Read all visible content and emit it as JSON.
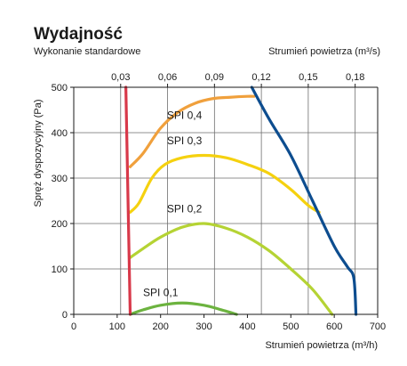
{
  "header": {
    "title": "Wydajność",
    "subtitle": "Wykonanie standardowe",
    "top_axis_label": "Strumień powietrza (m³/s)"
  },
  "chart_data": {
    "type": "line",
    "title": "Wydajność",
    "xlabel": "Strumień powietrza (m³/h)",
    "ylabel": "Spręż dyspozycyjny (Pa)",
    "x2label": "Strumień powietrza (m³/s)",
    "xlim": [
      0,
      700
    ],
    "ylim": [
      0,
      500
    ],
    "x2lim": [
      0,
      0.1944
    ],
    "x_ticks": [
      0,
      100,
      200,
      300,
      400,
      500,
      600,
      700
    ],
    "y_ticks": [
      0,
      100,
      200,
      300,
      400,
      500
    ],
    "x2_ticks": [
      {
        "value": 0.03,
        "label": "0,03"
      },
      {
        "value": 0.06,
        "label": "0,06"
      },
      {
        "value": 0.09,
        "label": "0,09"
      },
      {
        "value": 0.12,
        "label": "0,12"
      },
      {
        "value": 0.15,
        "label": "0,15"
      },
      {
        "value": 0.18,
        "label": "0,18"
      }
    ],
    "grid": true,
    "series": [
      {
        "name": "SPI 0,1",
        "color": "#6cb33f",
        "points": [
          [
            130,
            0
          ],
          [
            160,
            10
          ],
          [
            200,
            20
          ],
          [
            250,
            25
          ],
          [
            300,
            20
          ],
          [
            340,
            10
          ],
          [
            375,
            0
          ]
        ]
      },
      {
        "name": "SPI 0,2",
        "color": "#b5d334",
        "points": [
          [
            130,
            125
          ],
          [
            160,
            145
          ],
          [
            200,
            170
          ],
          [
            250,
            192
          ],
          [
            300,
            200
          ],
          [
            350,
            190
          ],
          [
            400,
            170
          ],
          [
            450,
            140
          ],
          [
            500,
            100
          ],
          [
            550,
            55
          ],
          [
            595,
            0
          ]
        ]
      },
      {
        "name": "SPI 0,3",
        "color": "#f5d10f",
        "points": [
          [
            130,
            225
          ],
          [
            150,
            245
          ],
          [
            180,
            300
          ],
          [
            210,
            330
          ],
          [
            250,
            345
          ],
          [
            300,
            350
          ],
          [
            350,
            345
          ],
          [
            400,
            330
          ],
          [
            450,
            310
          ],
          [
            500,
            275
          ],
          [
            540,
            240
          ],
          [
            565,
            225
          ]
        ]
      },
      {
        "name": "SPI 0,4",
        "color": "#f0a03c",
        "points": [
          [
            130,
            325
          ],
          [
            160,
            355
          ],
          [
            200,
            410
          ],
          [
            240,
            445
          ],
          [
            280,
            465
          ],
          [
            320,
            475
          ],
          [
            360,
            478
          ],
          [
            400,
            480
          ],
          [
            415,
            480
          ]
        ]
      },
      {
        "name": "",
        "color": "#d8394a",
        "points": [
          [
            120,
            500
          ],
          [
            130,
            0
          ]
        ]
      },
      {
        "name": "",
        "color": "#0d4d8f",
        "points": [
          [
            410,
            500
          ],
          [
            450,
            430
          ],
          [
            500,
            350
          ],
          [
            550,
            250
          ],
          [
            600,
            150
          ],
          [
            630,
            105
          ],
          [
            645,
            80
          ],
          [
            650,
            0
          ]
        ]
      }
    ],
    "annotations": [
      {
        "text": "SPI 0,1",
        "x": 200,
        "y": 40
      },
      {
        "text": "SPI 0,2",
        "x": 255,
        "y": 225
      },
      {
        "text": "SPI 0,3",
        "x": 255,
        "y": 375
      },
      {
        "text": "SPI 0,4",
        "x": 255,
        "y": 430
      }
    ]
  }
}
